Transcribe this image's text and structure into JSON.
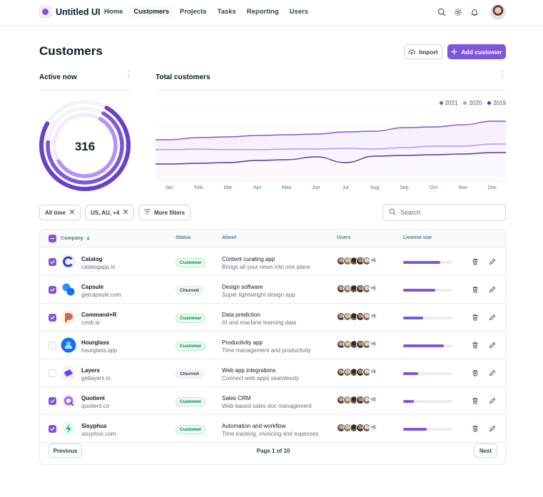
{
  "app": {
    "name": "Untitled UI"
  },
  "nav": [
    "Home",
    "Customers",
    "Projects",
    "Tasks",
    "Reporting",
    "Users"
  ],
  "page": {
    "title": "Customers",
    "import_label": "Import",
    "add_label": "Add customer"
  },
  "active_now": {
    "label": "Active now",
    "value": "316",
    "rings": [
      0.75,
      0.68,
      0.58
    ]
  },
  "total_customers": {
    "label": "Total customers"
  },
  "chart_data": {
    "type": "line",
    "title": "Total customers",
    "categories": [
      "Jan",
      "Feb",
      "Mar",
      "Apr",
      "May",
      "Jun",
      "Jul",
      "Aug",
      "Sep",
      "Oct",
      "Nov",
      "Dec"
    ],
    "series": [
      {
        "name": "2021",
        "values": [
          60,
          63,
          64,
          66,
          67,
          68,
          71,
          72,
          77,
          78,
          81,
          86
        ]
      },
      {
        "name": "2020",
        "values": [
          46,
          47,
          46,
          46,
          47,
          47,
          48,
          47,
          49,
          51,
          51,
          54
        ]
      },
      {
        "name": "2019",
        "values": [
          26,
          27,
          28,
          31,
          32,
          36,
          28,
          37,
          38,
          39,
          40,
          42
        ]
      }
    ],
    "colors": [
      "#7f56d9",
      "#b692f6",
      "#53389e"
    ],
    "ylim": [
      0,
      100
    ],
    "legend": "top-right",
    "grid": true
  },
  "filters": {
    "chips": [
      "All time",
      "US, AU, +4",
      "More filters"
    ],
    "search_placeholder": "Search"
  },
  "table": {
    "headers": {
      "company": "Company",
      "status": "Status",
      "about": "About",
      "users": "Users",
      "license": "License use"
    },
    "rows": [
      {
        "checked": true,
        "name": "Catalog",
        "site": "catalogapp.io",
        "status": "Customer",
        "about1": "Content curating app",
        "about2": "Brings all your news into one place",
        "more": "+5",
        "license": 0.75,
        "logo": "catalog"
      },
      {
        "checked": true,
        "name": "Capsule",
        "site": "getcapsule.com",
        "status": "Churned",
        "about1": "Design software",
        "about2": "Super lightweight design app",
        "more": "+5",
        "license": 0.65,
        "logo": "capsule"
      },
      {
        "checked": true,
        "name": "Command+R",
        "site": "cmdr.ai",
        "status": "Customer",
        "about1": "Data prediction",
        "about2": "AI and machine learning data",
        "more": "+5",
        "license": 0.4,
        "logo": "commandr"
      },
      {
        "checked": false,
        "name": "Hourglass",
        "site": "hourglass.app",
        "status": "Customer",
        "about1": "Productivity app",
        "about2": "Time management and productivity",
        "more": "+5",
        "license": 0.82,
        "logo": "hourglass"
      },
      {
        "checked": false,
        "name": "Layers",
        "site": "getlayers.io",
        "status": "Churned",
        "about1": "Web app integrations",
        "about2": "Connect web apps seamlessly",
        "more": "+5",
        "license": 0.3,
        "logo": "layers"
      },
      {
        "checked": true,
        "name": "Quotient",
        "site": "quotient.co",
        "status": "Customer",
        "about1": "Sales CRM",
        "about2": "Web-based sales doc management",
        "more": "+5",
        "license": 0.22,
        "logo": "quotient"
      },
      {
        "checked": true,
        "name": "Sisyphus",
        "site": "sisyphus.com",
        "status": "Customer",
        "about1": "Automation and workflow",
        "about2": "Time tracking, invoicing and expenses",
        "more": "+5",
        "license": 0.48,
        "logo": "sisyphus"
      }
    ]
  },
  "pagination": {
    "prev": "Previous",
    "text": "Page 1 of 10",
    "next": "Next"
  }
}
